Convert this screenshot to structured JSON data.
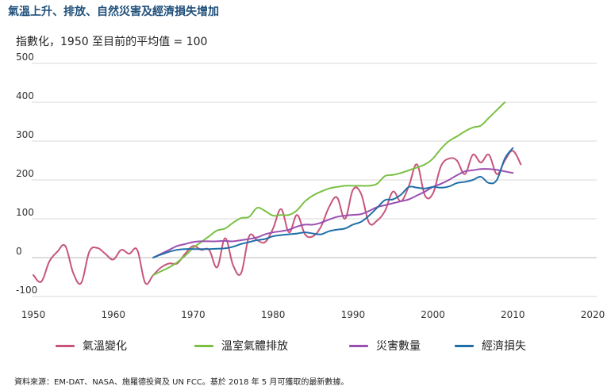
{
  "title": "氣溫上升、排放、自然災害及經濟損失增加",
  "subtitle": "指數化，1950 至目前的平均值 = 100",
  "source": "資料來源：EM-DAT、NASA、施羅德投資及 UN FCC。基於 2018 年 5 月可獲取的最新數據。",
  "chart_data": {
    "type": "line",
    "xlim": [
      1950,
      2020
    ],
    "ylim": [
      -100,
      500
    ],
    "x_ticks": [
      1950,
      1960,
      1970,
      1980,
      1990,
      2000,
      2010,
      2020
    ],
    "y_ticks": [
      -100,
      0,
      100,
      200,
      300,
      400,
      500
    ],
    "grid": "horizontal",
    "legend_position": "bottom",
    "series": [
      {
        "name": "氣溫變化",
        "color": "#c7557a",
        "points": [
          [
            1950,
            -45
          ],
          [
            1951,
            -62
          ],
          [
            1952,
            -10
          ],
          [
            1953,
            15
          ],
          [
            1954,
            30
          ],
          [
            1955,
            -40
          ],
          [
            1956,
            -65
          ],
          [
            1957,
            15
          ],
          [
            1958,
            25
          ],
          [
            1959,
            10
          ],
          [
            1960,
            -5
          ],
          [
            1961,
            20
          ],
          [
            1962,
            10
          ],
          [
            1963,
            20
          ],
          [
            1964,
            -65
          ],
          [
            1965,
            -45
          ],
          [
            1966,
            -25
          ],
          [
            1967,
            -15
          ],
          [
            1968,
            -15
          ],
          [
            1969,
            10
          ],
          [
            1970,
            30
          ],
          [
            1971,
            20
          ],
          [
            1972,
            20
          ],
          [
            1973,
            -25
          ],
          [
            1974,
            50
          ],
          [
            1975,
            -20
          ],
          [
            1976,
            -40
          ],
          [
            1977,
            55
          ],
          [
            1978,
            45
          ],
          [
            1979,
            40
          ],
          [
            1980,
            75
          ],
          [
            1981,
            125
          ],
          [
            1982,
            65
          ],
          [
            1983,
            110
          ],
          [
            1984,
            60
          ],
          [
            1985,
            55
          ],
          [
            1986,
            80
          ],
          [
            1987,
            130
          ],
          [
            1988,
            155
          ],
          [
            1989,
            100
          ],
          [
            1990,
            175
          ],
          [
            1991,
            165
          ],
          [
            1992,
            90
          ],
          [
            1993,
            95
          ],
          [
            1994,
            120
          ],
          [
            1995,
            170
          ],
          [
            1996,
            145
          ],
          [
            1997,
            185
          ],
          [
            1998,
            240
          ],
          [
            1999,
            160
          ],
          [
            2000,
            165
          ],
          [
            2001,
            235
          ],
          [
            2002,
            255
          ],
          [
            2003,
            250
          ],
          [
            2004,
            215
          ],
          [
            2005,
            265
          ],
          [
            2006,
            245
          ],
          [
            2007,
            265
          ],
          [
            2008,
            215
          ],
          [
            2009,
            250
          ],
          [
            2010,
            275
          ],
          [
            2011,
            240
          ]
        ]
      },
      {
        "name": "溫室氣體排放",
        "color": "#7ac143",
        "points": [
          [
            1965,
            -45
          ],
          [
            1966,
            -35
          ],
          [
            1967,
            -25
          ],
          [
            1968,
            -12
          ],
          [
            1969,
            5
          ],
          [
            1970,
            25
          ],
          [
            1971,
            40
          ],
          [
            1972,
            55
          ],
          [
            1973,
            70
          ],
          [
            1974,
            75
          ],
          [
            1975,
            90
          ],
          [
            1976,
            102
          ],
          [
            1977,
            105
          ],
          [
            1978,
            128
          ],
          [
            1979,
            120
          ],
          [
            1980,
            108
          ],
          [
            1981,
            110
          ],
          [
            1982,
            110
          ],
          [
            1983,
            122
          ],
          [
            1984,
            145
          ],
          [
            1985,
            160
          ],
          [
            1986,
            170
          ],
          [
            1987,
            178
          ],
          [
            1988,
            182
          ],
          [
            1989,
            185
          ],
          [
            1990,
            185
          ],
          [
            1991,
            185
          ],
          [
            1992,
            185
          ],
          [
            1993,
            190
          ],
          [
            1994,
            210
          ],
          [
            1995,
            213
          ],
          [
            1996,
            218
          ],
          [
            1997,
            225
          ],
          [
            1998,
            232
          ],
          [
            1999,
            240
          ],
          [
            2000,
            255
          ],
          [
            2001,
            280
          ],
          [
            2002,
            300
          ],
          [
            2003,
            312
          ],
          [
            2004,
            325
          ],
          [
            2005,
            335
          ],
          [
            2006,
            340
          ],
          [
            2007,
            360
          ],
          [
            2008,
            380
          ],
          [
            2009,
            400
          ]
        ]
      },
      {
        "name": "災害數量",
        "color": "#9b4fb0",
        "points": [
          [
            1965,
            0
          ],
          [
            1966,
            10
          ],
          [
            1967,
            20
          ],
          [
            1968,
            30
          ],
          [
            1969,
            35
          ],
          [
            1970,
            40
          ],
          [
            1971,
            42
          ],
          [
            1972,
            42
          ],
          [
            1973,
            42
          ],
          [
            1974,
            43
          ],
          [
            1975,
            42
          ],
          [
            1976,
            45
          ],
          [
            1977,
            48
          ],
          [
            1978,
            52
          ],
          [
            1979,
            60
          ],
          [
            1980,
            65
          ],
          [
            1981,
            68
          ],
          [
            1982,
            72
          ],
          [
            1983,
            80
          ],
          [
            1984,
            85
          ],
          [
            1985,
            85
          ],
          [
            1986,
            90
          ],
          [
            1987,
            98
          ],
          [
            1988,
            105
          ],
          [
            1989,
            108
          ],
          [
            1990,
            110
          ],
          [
            1991,
            112
          ],
          [
            1992,
            120
          ],
          [
            1993,
            130
          ],
          [
            1994,
            135
          ],
          [
            1995,
            140
          ],
          [
            1996,
            145
          ],
          [
            1997,
            150
          ],
          [
            1998,
            160
          ],
          [
            1999,
            170
          ],
          [
            2000,
            182
          ],
          [
            2001,
            190
          ],
          [
            2002,
            200
          ],
          [
            2003,
            212
          ],
          [
            2004,
            222
          ],
          [
            2005,
            225
          ],
          [
            2006,
            228
          ],
          [
            2007,
            228
          ],
          [
            2008,
            226
          ],
          [
            2009,
            222
          ],
          [
            2010,
            218
          ]
        ]
      },
      {
        "name": "經濟損失",
        "color": "#1f6fa8",
        "points": [
          [
            1965,
            0
          ],
          [
            1966,
            8
          ],
          [
            1967,
            15
          ],
          [
            1968,
            20
          ],
          [
            1969,
            22
          ],
          [
            1970,
            22
          ],
          [
            1971,
            22
          ],
          [
            1972,
            22
          ],
          [
            1973,
            23
          ],
          [
            1974,
            24
          ],
          [
            1975,
            28
          ],
          [
            1976,
            35
          ],
          [
            1977,
            40
          ],
          [
            1978,
            45
          ],
          [
            1979,
            48
          ],
          [
            1980,
            55
          ],
          [
            1981,
            58
          ],
          [
            1982,
            60
          ],
          [
            1983,
            62
          ],
          [
            1984,
            65
          ],
          [
            1985,
            62
          ],
          [
            1986,
            60
          ],
          [
            1987,
            68
          ],
          [
            1988,
            72
          ],
          [
            1989,
            75
          ],
          [
            1990,
            85
          ],
          [
            1991,
            92
          ],
          [
            1992,
            108
          ],
          [
            1993,
            128
          ],
          [
            1994,
            148
          ],
          [
            1995,
            150
          ],
          [
            1996,
            162
          ],
          [
            1997,
            182
          ],
          [
            1998,
            180
          ],
          [
            1999,
            178
          ],
          [
            2000,
            182
          ],
          [
            2001,
            180
          ],
          [
            2002,
            183
          ],
          [
            2003,
            192
          ],
          [
            2004,
            195
          ],
          [
            2005,
            200
          ],
          [
            2006,
            208
          ],
          [
            2007,
            192
          ],
          [
            2008,
            200
          ],
          [
            2009,
            255
          ],
          [
            2010,
            282
          ]
        ]
      }
    ]
  }
}
